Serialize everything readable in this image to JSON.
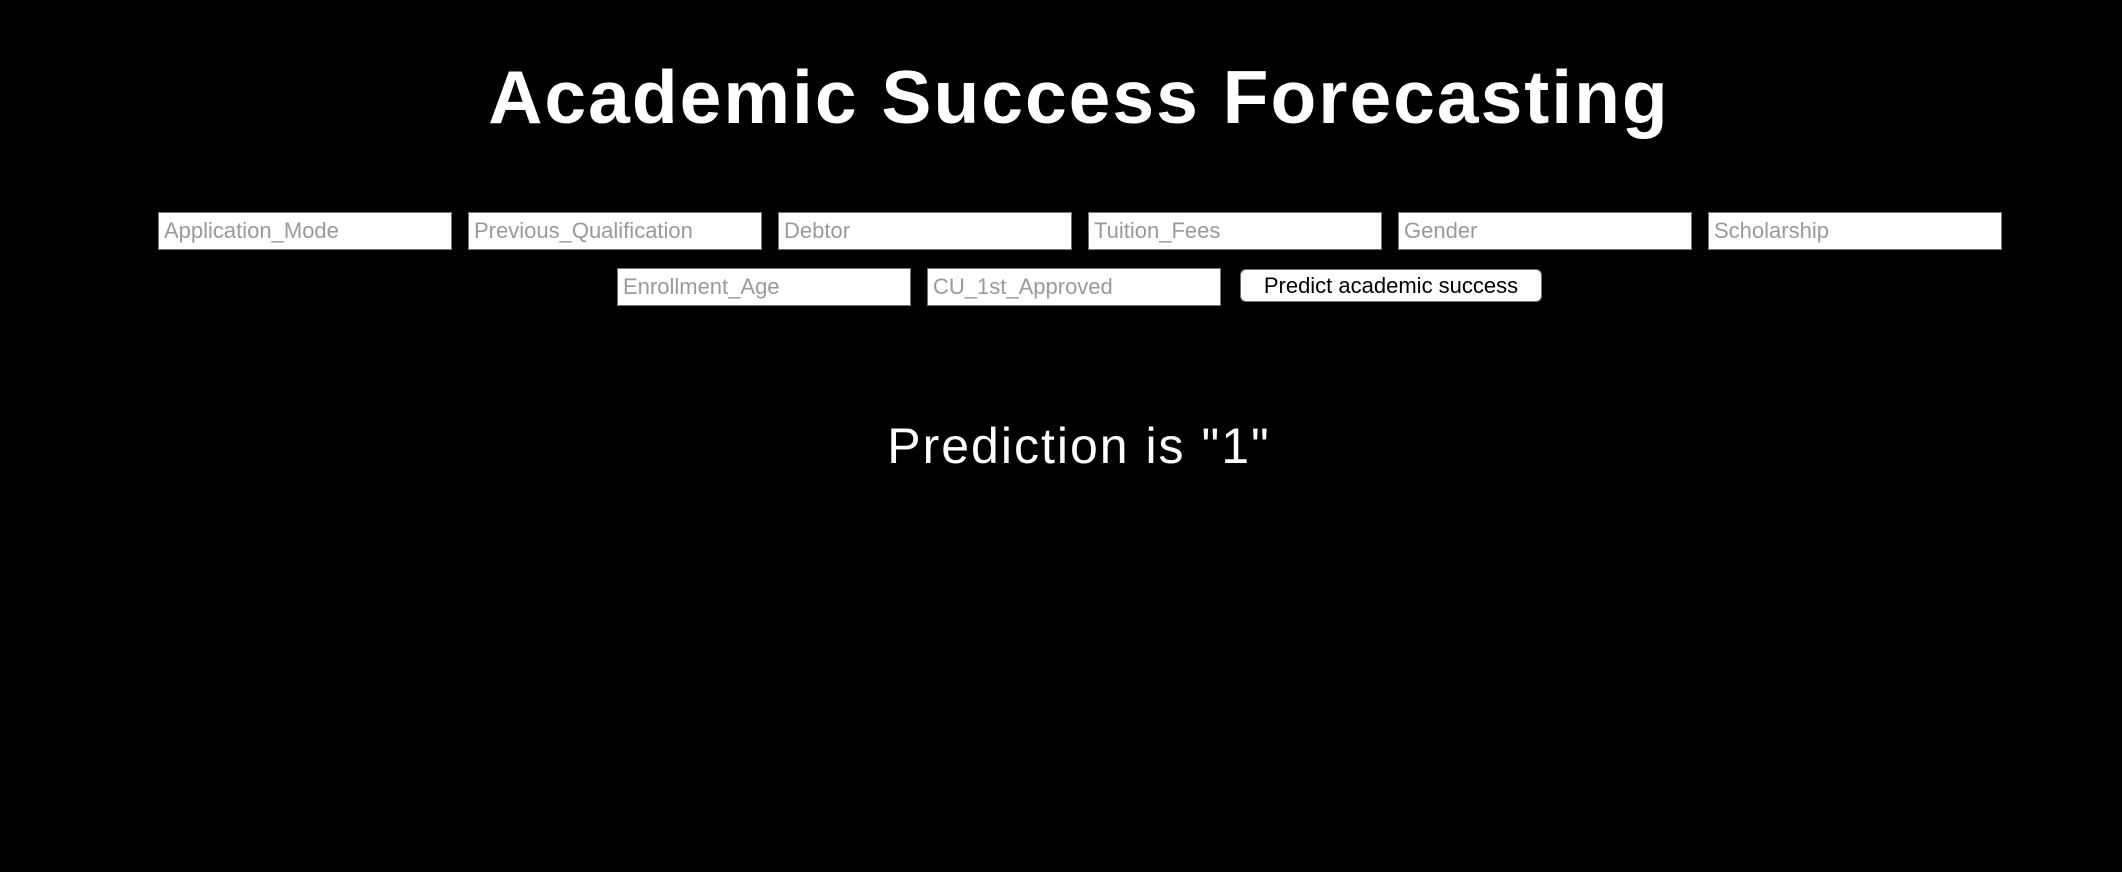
{
  "page": {
    "title": "Academic Success Forecasting",
    "background_color": "#000000",
    "text_color": "#ffffff"
  },
  "form": {
    "fields": [
      {
        "placeholder": "Application_Mode",
        "value": ""
      },
      {
        "placeholder": "Previous_Qualification",
        "value": ""
      },
      {
        "placeholder": "Debtor",
        "value": ""
      },
      {
        "placeholder": "Tuition_Fees",
        "value": ""
      },
      {
        "placeholder": "Gender",
        "value": ""
      },
      {
        "placeholder": "Scholarship",
        "value": ""
      },
      {
        "placeholder": "Enrollment_Age",
        "value": ""
      },
      {
        "placeholder": "CU_1st_Approved",
        "value": ""
      }
    ],
    "submit_label": "Predict academic success"
  },
  "result": {
    "prediction_text": "Prediction is \"1\""
  }
}
